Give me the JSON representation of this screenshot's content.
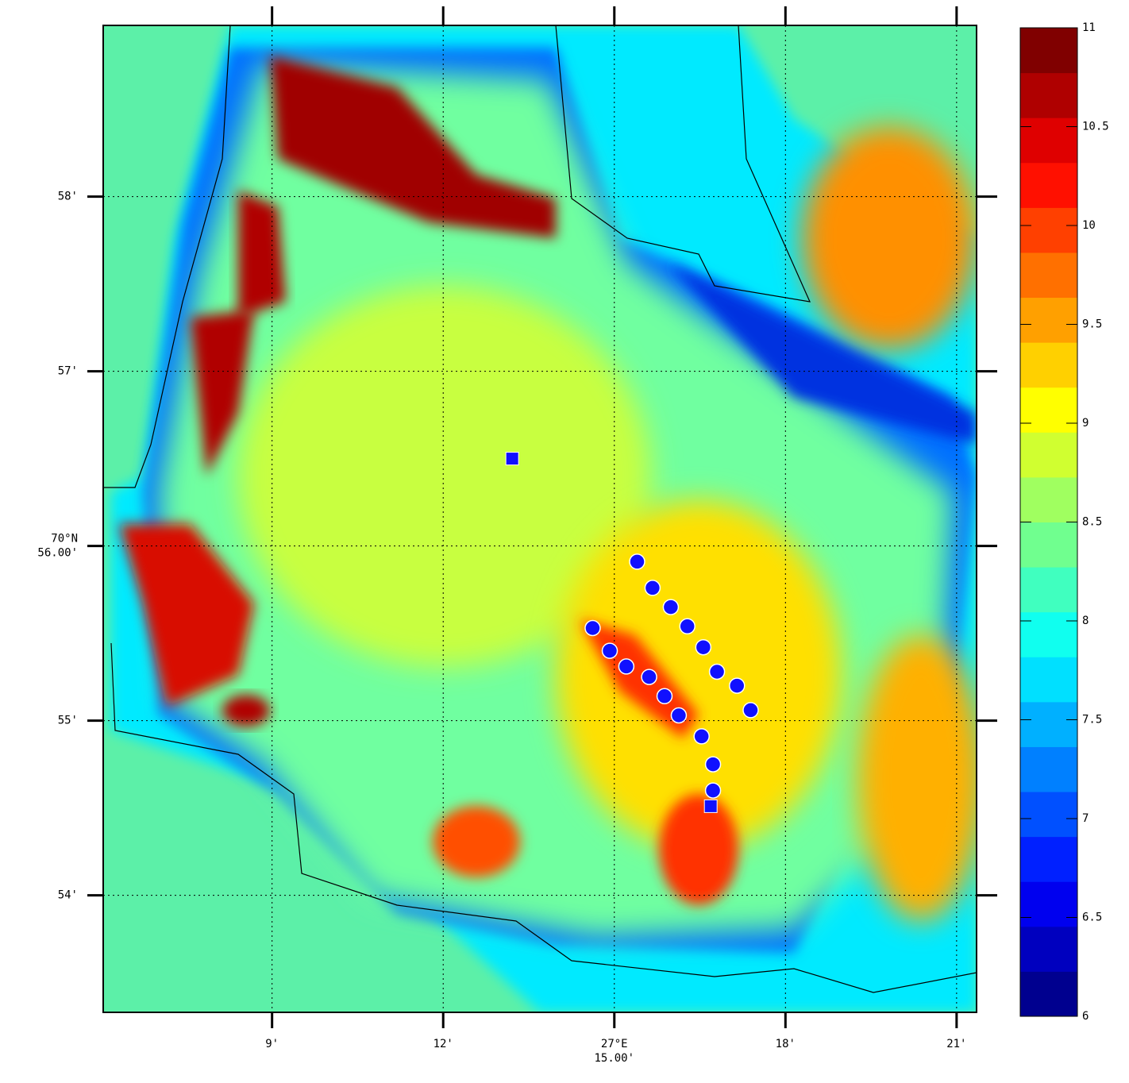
{
  "chart_data": {
    "type": "map",
    "xlim": [
      6.04,
      21.35
    ],
    "ylim": [
      53.33,
      58.98
    ],
    "xticks": [
      {
        "value": 9,
        "label": [
          "9'"
        ]
      },
      {
        "value": 12,
        "label": [
          "12'"
        ]
      },
      {
        "value": 15,
        "label": [
          "27°E",
          "15.00'"
        ]
      },
      {
        "value": 18,
        "label": [
          "18'"
        ]
      },
      {
        "value": 21,
        "label": [
          "21'"
        ]
      }
    ],
    "yticks": [
      {
        "value": 58,
        "label": [
          "58'"
        ]
      },
      {
        "value": 57,
        "label": [
          "57'"
        ]
      },
      {
        "value": 56,
        "label": [
          "70°N",
          "56.00'"
        ]
      },
      {
        "value": 55,
        "label": [
          "55'"
        ]
      },
      {
        "value": 54,
        "label": [
          "54'"
        ]
      }
    ],
    "grid": true,
    "circles": {
      "color": "#1010ff",
      "x": [
        15.4,
        15.67,
        15.99,
        16.28,
        16.56,
        16.8,
        17.15,
        17.39,
        14.62,
        14.92,
        15.21,
        15.61,
        15.88,
        16.13,
        16.53,
        16.73,
        16.73
      ],
      "y": [
        55.91,
        55.76,
        55.65,
        55.54,
        55.42,
        55.28,
        55.2,
        55.06,
        55.53,
        55.4,
        55.31,
        55.25,
        55.14,
        55.03,
        54.91,
        54.75,
        54.6
      ]
    },
    "squares": {
      "color": "#1010ff",
      "x": [
        13.21,
        16.69
      ],
      "y": [
        56.5,
        54.51
      ]
    },
    "colorbar": {
      "lim": [
        6,
        11
      ],
      "ticks": [
        6,
        6.5,
        7,
        7.5,
        8,
        8.5,
        9,
        9.5,
        10,
        10.5,
        11
      ],
      "colors": [
        "#00008f",
        "#0000bf",
        "#0000ef",
        "#0020ff",
        "#0050ff",
        "#0080ff",
        "#00b0ff",
        "#00e0ff",
        "#10ffef",
        "#40ffbf",
        "#70ff8f",
        "#a0ff60",
        "#d0ff30",
        "#ffff00",
        "#ffd000",
        "#ffa000",
        "#ff7000",
        "#ff4000",
        "#ff1000",
        "#df0000",
        "#af0000",
        "#800000"
      ]
    }
  }
}
